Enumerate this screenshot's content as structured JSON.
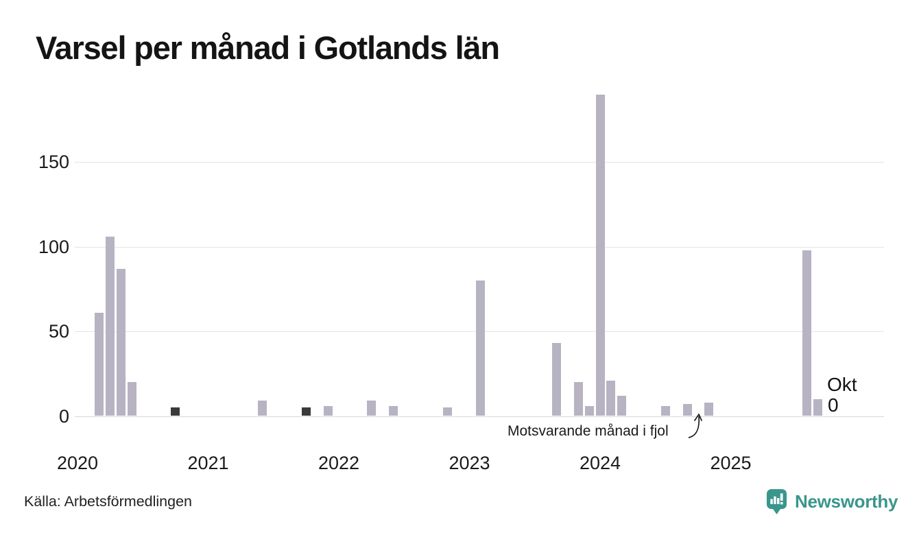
{
  "title": "Varsel per månad i Gotlands län",
  "source": "Källa: Arbetsförmedlingen",
  "brand": {
    "name": "Newsworthy",
    "color": "#3a968c"
  },
  "annotation": {
    "text": "Motsvarande månad i fjol"
  },
  "latest": {
    "month_label": "Okt",
    "value_label": "0"
  },
  "colors": {
    "bar": "#b7b3c2",
    "bar_highlight": "#3a3a3a",
    "grid": "#e4e4e7",
    "text": "#1a1a1a"
  },
  "chart_data": {
    "type": "bar",
    "title": "Varsel per månad i Gotlands län",
    "x_range": [
      "2020-01",
      "2025-10"
    ],
    "xticks": [
      "2020",
      "2021",
      "2022",
      "2023",
      "2024",
      "2025"
    ],
    "yticks": [
      0,
      50,
      100,
      150
    ],
    "ylim": [
      0,
      195
    ],
    "grid": true,
    "legend": "none",
    "highlight_months": [
      "2020-10",
      "2021-10",
      "2022-10",
      "2023-10",
      "2024-10",
      "2025-10"
    ],
    "highlight_meaning": "October each year (same month as latest)",
    "points": [
      {
        "month": "2020-03",
        "value": 61
      },
      {
        "month": "2020-04",
        "value": 106
      },
      {
        "month": "2020-05",
        "value": 87
      },
      {
        "month": "2020-06",
        "value": 20
      },
      {
        "month": "2020-10",
        "value": 5
      },
      {
        "month": "2021-06",
        "value": 9
      },
      {
        "month": "2021-10",
        "value": 5
      },
      {
        "month": "2021-12",
        "value": 6
      },
      {
        "month": "2022-04",
        "value": 9
      },
      {
        "month": "2022-06",
        "value": 6
      },
      {
        "month": "2022-10",
        "value": 0
      },
      {
        "month": "2022-11",
        "value": 5
      },
      {
        "month": "2023-02",
        "value": 80
      },
      {
        "month": "2023-09",
        "value": 43
      },
      {
        "month": "2023-10",
        "value": 0
      },
      {
        "month": "2023-11",
        "value": 20
      },
      {
        "month": "2023-12",
        "value": 6
      },
      {
        "month": "2024-01",
        "value": 190
      },
      {
        "month": "2024-02",
        "value": 21
      },
      {
        "month": "2024-03",
        "value": 12
      },
      {
        "month": "2024-07",
        "value": 6
      },
      {
        "month": "2024-09",
        "value": 7
      },
      {
        "month": "2024-10",
        "value": 0
      },
      {
        "month": "2024-11",
        "value": 8
      },
      {
        "month": "2025-08",
        "value": 98
      },
      {
        "month": "2025-09",
        "value": 10
      },
      {
        "month": "2025-10",
        "value": 0
      }
    ],
    "months_without_bars_are_zero": true
  }
}
